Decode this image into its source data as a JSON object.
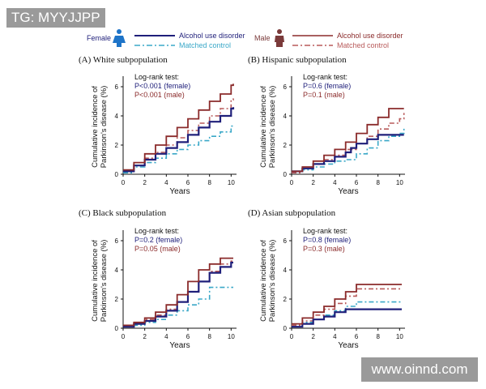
{
  "watermarks": {
    "top_left": "TG: MYYJJPP",
    "bottom_right": "www.oinnd.com"
  },
  "legend": {
    "female_label": "Female",
    "male_label": "Male",
    "female_aud": "Alcohol use disorder",
    "female_ctrl": "Matched control",
    "male_aud": "Alcohol use disorder",
    "male_ctrl": "Matched control"
  },
  "colors": {
    "female_aud": "#1f1f7a",
    "female_ctrl": "#3aa8c8",
    "male_aud": "#8b2b2b",
    "male_ctrl": "#b85a5a",
    "icon_female": "#1e74c8",
    "icon_male": "#7a3a3a"
  },
  "chart_data": [
    {
      "type": "line",
      "title": "(A)  White subpopulation",
      "xlabel": "Years",
      "ylabel": "Cumulative incidence of Parkinson's disease (%)",
      "xlim": [
        0,
        10.5
      ],
      "ylim": [
        0,
        6.5
      ],
      "xticks": [
        0,
        2,
        4,
        6,
        8,
        10
      ],
      "yticks": [
        0,
        2,
        4,
        6
      ],
      "logrank_title": "Log-rank test:",
      "p_female": "P<0.001 (female)",
      "p_male": "P<0.001 (male)",
      "series": [
        {
          "name": "female_aud",
          "x": [
            0,
            1,
            2,
            3,
            4,
            5,
            6,
            7,
            8,
            9,
            10,
            10.2
          ],
          "y": [
            0.2,
            0.6,
            1.0,
            1.4,
            1.8,
            2.2,
            2.7,
            3.2,
            3.6,
            4.0,
            4.5,
            4.6
          ]
        },
        {
          "name": "female_ctrl",
          "x": [
            0,
            1,
            2,
            3,
            4,
            5,
            6,
            7,
            8,
            9,
            10,
            10.2
          ],
          "y": [
            0.1,
            0.5,
            0.8,
            1.1,
            1.4,
            1.7,
            2.0,
            2.3,
            2.6,
            2.9,
            3.3,
            3.4
          ]
        },
        {
          "name": "male_aud",
          "x": [
            0,
            1,
            2,
            3,
            4,
            5,
            6,
            7,
            8,
            9,
            10,
            10.2
          ],
          "y": [
            0.3,
            0.8,
            1.4,
            2.0,
            2.6,
            3.2,
            3.8,
            4.4,
            5.0,
            5.5,
            6.1,
            6.2
          ]
        },
        {
          "name": "male_ctrl",
          "x": [
            0,
            1,
            2,
            3,
            4,
            5,
            6,
            7,
            8,
            9,
            10,
            10.2
          ],
          "y": [
            0.2,
            0.6,
            1.1,
            1.5,
            2.0,
            2.5,
            3.0,
            3.5,
            4.0,
            4.5,
            5.1,
            5.2
          ]
        }
      ]
    },
    {
      "type": "line",
      "title": "(B)  Hispanic subpopulation",
      "xlabel": "Years",
      "ylabel": "Cumulative incidence of Parkinson's disease (%)",
      "xlim": [
        0,
        10.5
      ],
      "ylim": [
        0,
        6.5
      ],
      "xticks": [
        0,
        2,
        4,
        6,
        8,
        10
      ],
      "yticks": [
        0,
        2,
        4,
        6
      ],
      "logrank_title": "Log-rank test:",
      "p_female": "P=0.6 (female)",
      "p_male": "P=0.1 (male)",
      "series": [
        {
          "name": "female_aud",
          "x": [
            0,
            1,
            2,
            3,
            4,
            5,
            5.5,
            6,
            7,
            8,
            9,
            9.5,
            10.4
          ],
          "y": [
            0.2,
            0.4,
            0.7,
            0.9,
            1.2,
            1.5,
            1.8,
            2.1,
            2.4,
            2.7,
            2.7,
            2.7,
            2.7
          ]
        },
        {
          "name": "female_ctrl",
          "x": [
            0,
            1,
            2,
            3,
            4,
            5,
            6,
            7,
            8,
            9,
            10,
            10.4
          ],
          "y": [
            0.1,
            0.3,
            0.5,
            0.7,
            0.9,
            1.0,
            1.4,
            1.8,
            2.3,
            2.6,
            2.8,
            3.2
          ]
        },
        {
          "name": "male_aud",
          "x": [
            0,
            1,
            2,
            3,
            4,
            5,
            6,
            7,
            8,
            9,
            10,
            10.4
          ],
          "y": [
            0.2,
            0.5,
            0.9,
            1.3,
            1.7,
            2.2,
            2.8,
            3.4,
            3.9,
            4.5,
            4.5,
            4.5
          ]
        },
        {
          "name": "male_ctrl",
          "x": [
            0,
            1,
            2,
            3,
            4,
            5,
            6,
            7,
            8,
            9,
            10,
            10.4
          ],
          "y": [
            0.1,
            0.4,
            0.7,
            1.0,
            1.3,
            1.7,
            2.1,
            2.6,
            3.1,
            3.5,
            3.8,
            4.2
          ]
        }
      ]
    },
    {
      "type": "line",
      "title": "(C)  Black subpopulation",
      "xlabel": "Years",
      "ylabel": "Cumulative incidence of Parkinson's disease (%)",
      "xlim": [
        0,
        10.5
      ],
      "ylim": [
        0,
        6.5
      ],
      "xticks": [
        0,
        2,
        4,
        6,
        8,
        10
      ],
      "yticks": [
        0,
        2,
        4,
        6
      ],
      "logrank_title": "Log-rank test:",
      "p_female": "P=0.2 (female)",
      "p_male": "P=0.05 (male)",
      "series": [
        {
          "name": "female_aud",
          "x": [
            0,
            1,
            2,
            3,
            4,
            5,
            6,
            7,
            8,
            9,
            10,
            10.2
          ],
          "y": [
            0.1,
            0.3,
            0.5,
            0.8,
            1.2,
            1.8,
            2.5,
            3.2,
            3.8,
            4.2,
            4.5,
            4.5
          ]
        },
        {
          "name": "female_ctrl",
          "x": [
            0,
            1,
            2,
            3,
            4,
            5,
            6,
            7,
            8,
            9,
            10,
            10.2
          ],
          "y": [
            0.1,
            0.2,
            0.4,
            0.6,
            0.9,
            1.2,
            1.6,
            2.0,
            2.8,
            2.8,
            2.8,
            2.8
          ]
        },
        {
          "name": "male_aud",
          "x": [
            0,
            1,
            2,
            3,
            4,
            5,
            6,
            7,
            8,
            9,
            10,
            10.2
          ],
          "y": [
            0.2,
            0.4,
            0.7,
            1.1,
            1.6,
            2.3,
            3.2,
            4.0,
            4.4,
            4.8,
            4.8,
            4.8
          ]
        },
        {
          "name": "male_ctrl",
          "x": [
            0,
            1,
            2,
            3,
            4,
            5,
            6,
            7,
            8,
            9,
            10,
            10.2
          ],
          "y": [
            0.1,
            0.3,
            0.6,
            0.9,
            1.3,
            1.8,
            2.5,
            3.2,
            3.9,
            4.4,
            4.6,
            4.6
          ]
        }
      ]
    },
    {
      "type": "line",
      "title": "(D)  Asian subpopulation",
      "xlabel": "Years",
      "ylabel": "Cumulative incidence of Parkinson's disease (%)",
      "xlim": [
        0,
        10.5
      ],
      "ylim": [
        0,
        6.5
      ],
      "xticks": [
        0,
        2,
        4,
        6,
        8,
        10
      ],
      "yticks": [
        0,
        2,
        4,
        6
      ],
      "logrank_title": "Log-rank test:",
      "p_female": "P=0.8 (female)",
      "p_male": "P=0.3 (male)",
      "series": [
        {
          "name": "female_aud",
          "x": [
            0,
            1,
            2,
            3,
            4,
            5,
            6,
            7,
            8,
            9,
            10,
            10.2
          ],
          "y": [
            0.1,
            0.3,
            0.6,
            0.8,
            1.1,
            1.3,
            1.3,
            1.3,
            1.3,
            1.3,
            1.3,
            1.3
          ]
        },
        {
          "name": "female_ctrl",
          "x": [
            0,
            1,
            2,
            3,
            4,
            5,
            6,
            7,
            8,
            9,
            10,
            10.2
          ],
          "y": [
            0.1,
            0.4,
            0.6,
            0.9,
            1.2,
            1.5,
            1.8,
            1.8,
            1.8,
            1.8,
            1.8,
            1.8
          ]
        },
        {
          "name": "male_aud",
          "x": [
            0,
            1,
            2,
            3,
            4,
            5,
            6,
            7,
            8,
            9,
            10,
            10.2
          ],
          "y": [
            0.3,
            0.7,
            1.1,
            1.5,
            2.0,
            2.5,
            3.0,
            3.0,
            3.0,
            3.0,
            3.0,
            3.0
          ]
        },
        {
          "name": "male_ctrl",
          "x": [
            0,
            1,
            2,
            3,
            4,
            5,
            6,
            7,
            8,
            9,
            10,
            10.2
          ],
          "y": [
            0.2,
            0.5,
            0.9,
            1.3,
            1.7,
            2.2,
            2.7,
            2.7,
            2.7,
            2.7,
            2.7,
            2.7
          ]
        }
      ]
    }
  ]
}
